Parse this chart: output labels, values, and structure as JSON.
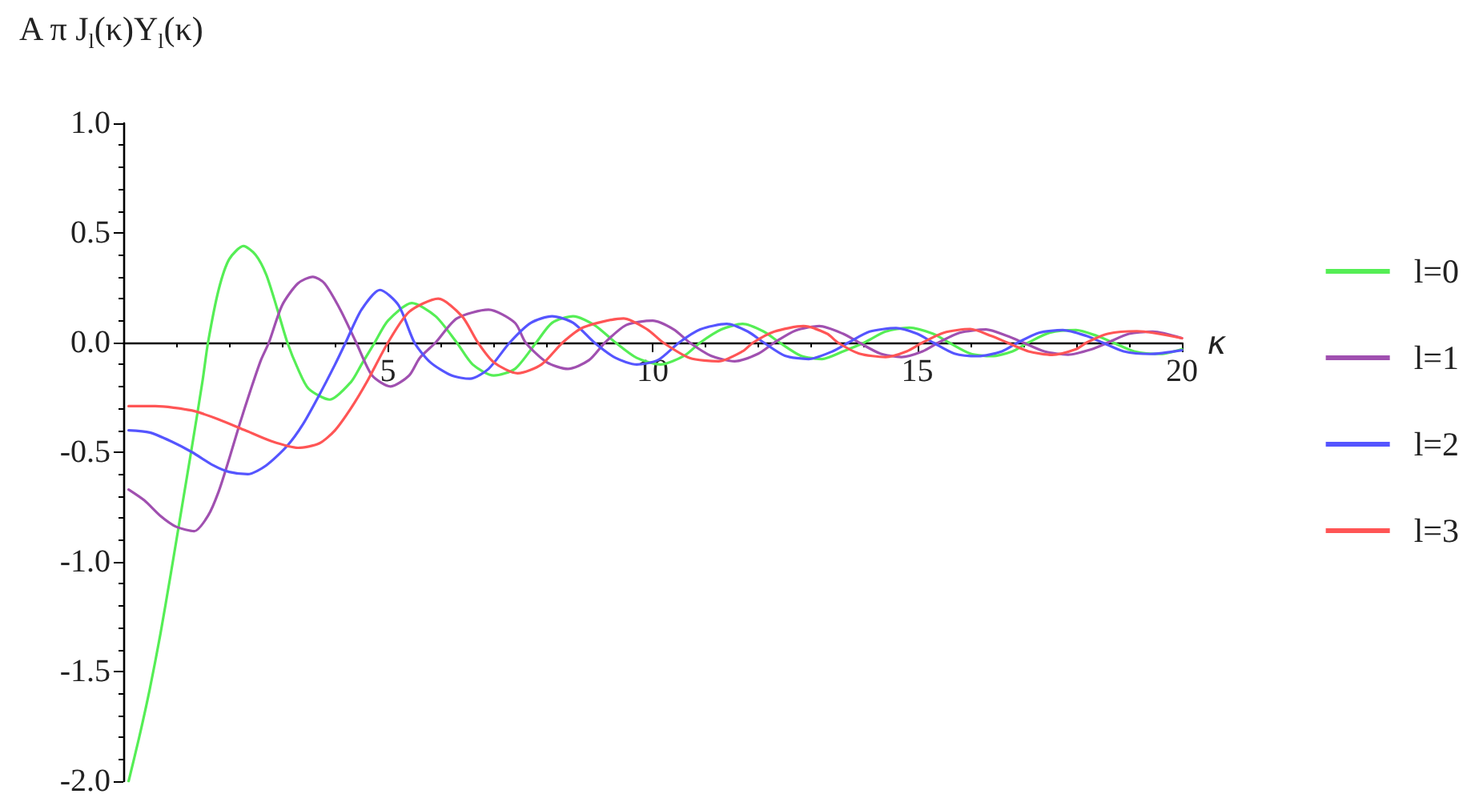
{
  "chart_data": {
    "type": "line",
    "ylabel": "A π J$_{l}$(κ)Y$_{l}$(κ)",
    "xlabel": "κ",
    "xlim": [
      0,
      20
    ],
    "ylim": [
      -2,
      1
    ],
    "xticks": [
      5,
      10,
      15,
      20
    ],
    "yticks": [
      {
        "value": -2,
        "label": "-2.0"
      },
      {
        "value": -1.5,
        "label": "-1.5"
      },
      {
        "value": -1,
        "label": "-1.0"
      },
      {
        "value": -0.5,
        "label": "-0.5"
      },
      {
        "value": 0,
        "label": "0.0"
      },
      {
        "value": 0.5,
        "label": "0.5"
      },
      {
        "value": 1,
        "label": "1.0"
      }
    ],
    "legend": "right",
    "marker": "none",
    "line_style": "solid",
    "series": [
      {
        "name": "l=0",
        "color": "#55ee55",
        "x": [
          0.1,
          0.3,
          0.5,
          0.7,
          0.9,
          1.1,
          1.3,
          1.5,
          1.6,
          1.8,
          2.0,
          2.27,
          2.5,
          2.7,
          2.9,
          3.1,
          3.3,
          3.5,
          3.9,
          4.3,
          4.5,
          4.75,
          5.0,
          5.45,
          5.9,
          6.3,
          6.6,
          7.0,
          7.4,
          7.8,
          8.1,
          8.5,
          8.9,
          9.3,
          9.7,
          10.15,
          10.6,
          10.9,
          11.3,
          11.7,
          12.1,
          12.4,
          12.8,
          13.2,
          13.6,
          14.0,
          14.4,
          14.85,
          15.3,
          15.6,
          16.0,
          16.4,
          16.8,
          17.1,
          17.5,
          18.0,
          18.4,
          18.7,
          19.1,
          19.6,
          20.0
        ],
        "values": [
          -2.0,
          -1.8,
          -1.58,
          -1.33,
          -1.05,
          -0.76,
          -0.47,
          -0.17,
          0,
          0.24,
          0.38,
          0.44,
          0.4,
          0.31,
          0.16,
          0,
          -0.12,
          -0.21,
          -0.26,
          -0.18,
          -0.1,
          0,
          0.1,
          0.18,
          0.12,
          0,
          -0.1,
          -0.15,
          -0.12,
          0,
          0.09,
          0.12,
          0.08,
          0,
          -0.07,
          -0.1,
          -0.06,
          0,
          0.06,
          0.085,
          0.05,
          0,
          -0.06,
          -0.075,
          -0.04,
          0,
          0.05,
          0.068,
          0.04,
          0,
          -0.05,
          -0.062,
          -0.04,
          0,
          0.045,
          0.057,
          0.03,
          0,
          -0.04,
          -0.052,
          -0.03
        ]
      },
      {
        "name": "l=1",
        "color": "#a050b0",
        "x": [
          0.1,
          0.4,
          0.7,
          1.0,
          1.34,
          1.6,
          1.8,
          2.0,
          2.2,
          2.4,
          2.6,
          2.75,
          3.0,
          3.3,
          3.58,
          3.8,
          4.1,
          4.4,
          4.7,
          5.05,
          5.4,
          5.6,
          5.9,
          6.3,
          6.9,
          7.4,
          7.6,
          8.0,
          8.4,
          8.8,
          9.1,
          9.5,
          10.0,
          10.4,
          10.7,
          11.1,
          11.55,
          12.0,
          12.3,
          12.7,
          13.15,
          13.6,
          13.9,
          14.3,
          14.7,
          15.1,
          15.4,
          15.8,
          16.3,
          16.7,
          17.0,
          17.4,
          17.85,
          18.3,
          18.6,
          19.0,
          19.45,
          20.0
        ],
        "values": [
          -0.67,
          -0.72,
          -0.79,
          -0.84,
          -0.86,
          -0.79,
          -0.68,
          -0.53,
          -0.37,
          -0.22,
          -0.08,
          0,
          0.17,
          0.27,
          0.3,
          0.27,
          0.15,
          0,
          -0.15,
          -0.2,
          -0.15,
          -0.07,
          0,
          0.11,
          0.15,
          0.09,
          0,
          -0.09,
          -0.12,
          -0.08,
          0,
          0.08,
          0.1,
          0.06,
          0,
          -0.06,
          -0.085,
          -0.05,
          0,
          0.055,
          0.075,
          0.04,
          0,
          -0.05,
          -0.066,
          -0.04,
          0,
          0.045,
          0.06,
          0.03,
          0,
          -0.04,
          -0.055,
          -0.03,
          0,
          0.04,
          0.05,
          0.02
        ]
      },
      {
        "name": "l=2",
        "color": "#5555ff",
        "x": [
          0.1,
          0.5,
          0.9,
          1.3,
          1.7,
          2.0,
          2.35,
          2.7,
          3.1,
          3.4,
          3.7,
          4.0,
          4.2,
          4.5,
          4.85,
          5.2,
          5.5,
          5.8,
          6.2,
          6.55,
          6.9,
          7.3,
          7.7,
          8.1,
          8.5,
          8.9,
          9.3,
          9.7,
          10.1,
          10.5,
          10.9,
          11.4,
          11.8,
          12.1,
          12.5,
          12.95,
          13.4,
          13.7,
          14.1,
          14.6,
          15.0,
          15.3,
          15.7,
          16.15,
          16.6,
          16.9,
          17.3,
          17.75,
          18.2,
          18.5,
          18.9,
          19.4,
          20.0
        ],
        "values": [
          -0.4,
          -0.41,
          -0.45,
          -0.5,
          -0.56,
          -0.59,
          -0.6,
          -0.56,
          -0.47,
          -0.37,
          -0.24,
          -0.1,
          0,
          0.15,
          0.24,
          0.17,
          0,
          -0.09,
          -0.15,
          -0.165,
          -0.12,
          0,
          0.09,
          0.12,
          0.09,
          0,
          -0.07,
          -0.1,
          -0.08,
          0,
          0.06,
          0.085,
          0.05,
          0,
          -0.06,
          -0.075,
          -0.04,
          0,
          0.05,
          0.066,
          0.04,
          0,
          -0.05,
          -0.062,
          -0.04,
          0,
          0.045,
          0.057,
          0.03,
          0,
          -0.04,
          -0.052,
          -0.035
        ]
      },
      {
        "name": "l=3",
        "color": "#ff5555",
        "x": [
          0.1,
          0.6,
          1.3,
          1.8,
          2.3,
          2.8,
          3.3,
          3.7,
          4.0,
          4.3,
          4.6,
          5.0,
          5.4,
          5.95,
          6.4,
          6.7,
          7.0,
          7.45,
          7.9,
          8.3,
          8.7,
          9.45,
          9.9,
          10.2,
          10.7,
          11.25,
          11.7,
          11.9,
          12.3,
          12.85,
          13.3,
          13.5,
          13.9,
          14.4,
          14.8,
          15.1,
          15.5,
          16.0,
          16.4,
          16.7,
          17.1,
          17.55,
          18.0,
          18.2,
          18.6,
          19.15,
          20.0
        ],
        "values": [
          -0.29,
          -0.29,
          -0.31,
          -0.35,
          -0.4,
          -0.45,
          -0.48,
          -0.46,
          -0.4,
          -0.3,
          -0.18,
          0,
          0.14,
          0.2,
          0.12,
          0,
          -0.09,
          -0.14,
          -0.1,
          0,
          0.07,
          0.11,
          0.06,
          0,
          -0.07,
          -0.085,
          -0.04,
          0,
          0.05,
          0.075,
          0.04,
          0,
          -0.05,
          -0.066,
          -0.04,
          0,
          0.045,
          0.062,
          0.03,
          0,
          -0.04,
          -0.056,
          -0.03,
          0,
          0.04,
          0.052,
          0.02
        ]
      }
    ]
  }
}
